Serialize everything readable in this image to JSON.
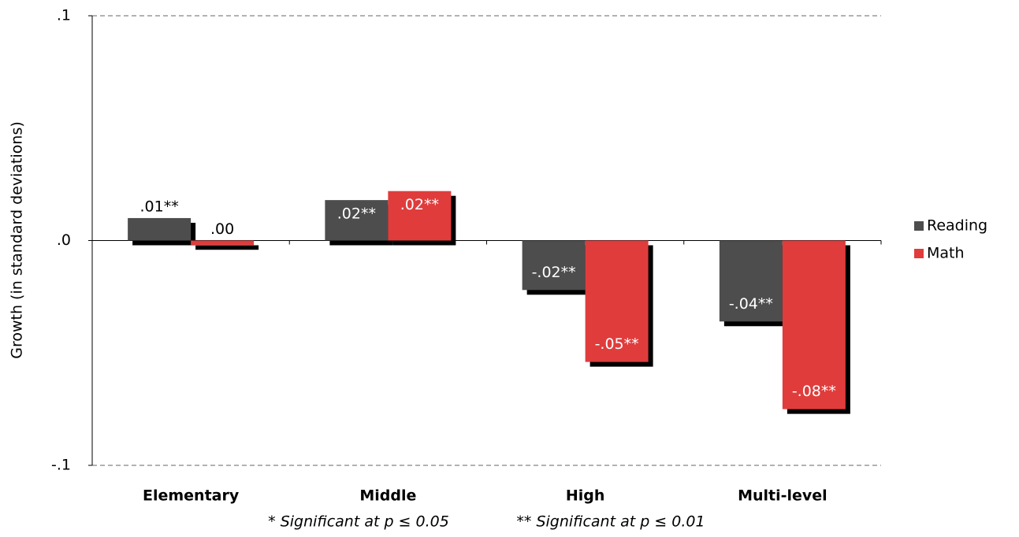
{
  "chart_data": {
    "type": "bar",
    "y_label": "Growth (in standard deviations)",
    "categories": [
      "Elementary",
      "Middle",
      "High",
      "Multi-level"
    ],
    "series": [
      {
        "name": "Reading",
        "color": "#4d4d4d",
        "values": [
          0.01,
          0.018,
          -0.022,
          -0.036
        ],
        "value_labels": [
          ".01**",
          ".02**",
          "-.02**",
          "-.04**"
        ]
      },
      {
        "name": "Math",
        "color": "#e03c3c",
        "values": [
          -0.002,
          0.022,
          -0.054,
          -0.075
        ],
        "value_labels": [
          ".00",
          ".02**",
          "-.05**",
          "-.08**"
        ]
      }
    ],
    "ylim": [
      -0.1,
      0.1
    ],
    "yticks": [
      {
        "value": 0.1,
        "label": ".1"
      },
      {
        "value": 0,
        "label": ".0"
      },
      {
        "value": -0.1,
        "label": "-.1"
      }
    ],
    "notes": [
      "* Significant at p ≤ 0.05",
      "** Significant at p ≤ 0.01"
    ],
    "legend": "right"
  }
}
